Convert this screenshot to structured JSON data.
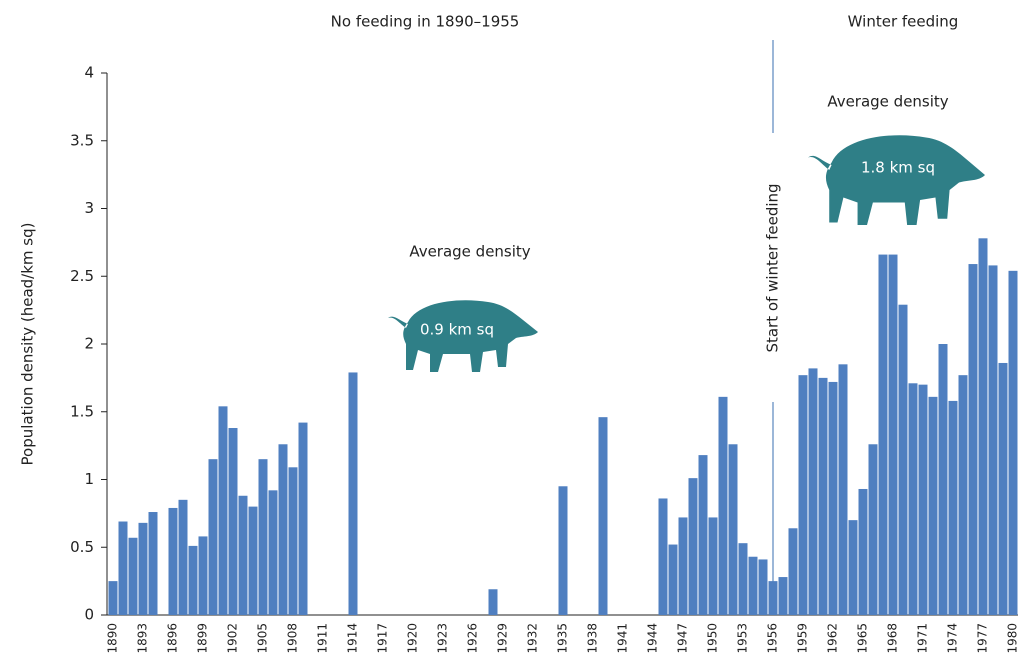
{
  "chart_data": {
    "type": "bar",
    "ylabel": "Population density (head/km sq)",
    "annotations": {
      "left_period": "No feeding in 1890–1955",
      "right_period": "Winter feeding",
      "left_avg": "Average density",
      "right_avg": "Average density",
      "left_value": "0.9 km sq",
      "right_value": "1.8 km sq",
      "marker": "Start of winter feeding"
    },
    "categories": [
      "1890",
      null,
      null,
      "1893",
      null,
      null,
      "1896",
      null,
      null,
      "1899",
      null,
      null,
      "1902",
      null,
      null,
      "1905",
      null,
      null,
      "1908",
      null,
      null,
      "1911",
      null,
      null,
      "1914",
      null,
      null,
      "1917",
      null,
      null,
      "1920",
      null,
      null,
      "1923",
      null,
      null,
      "1926",
      null,
      null,
      "1929",
      null,
      null,
      "1932",
      null,
      null,
      "1935",
      null,
      null,
      "1938",
      null,
      null,
      "1941",
      null,
      null,
      "1944",
      null,
      null,
      "1947",
      null,
      null,
      "1950",
      null,
      null,
      "1953",
      null,
      null,
      "1956",
      null,
      null,
      "1959",
      null,
      null,
      "1962",
      null,
      null,
      "1965",
      null,
      null,
      "1968",
      null,
      null,
      "1971",
      null,
      null,
      "1974",
      null,
      null,
      "1977",
      null,
      null,
      "1980"
    ],
    "values": [
      0.25,
      0.69,
      0.57,
      0.68,
      0.76,
      null,
      0.79,
      0.85,
      0.51,
      0.58,
      1.15,
      1.54,
      1.38,
      0.88,
      0.8,
      1.15,
      0.92,
      1.26,
      1.09,
      1.42,
      null,
      null,
      null,
      null,
      1.79,
      null,
      null,
      null,
      null,
      null,
      null,
      null,
      null,
      null,
      null,
      null,
      null,
      null,
      0.19,
      null,
      null,
      null,
      null,
      null,
      null,
      0.95,
      null,
      null,
      null,
      1.46,
      null,
      null,
      null,
      null,
      null,
      0.86,
      0.52,
      0.72,
      1.01,
      1.18,
      0.72,
      1.61,
      1.26,
      0.53,
      0.43,
      0.41,
      0.25,
      0.28,
      0.64,
      1.77,
      1.82,
      1.75,
      1.72,
      1.85,
      0.7,
      0.93,
      1.26,
      2.66,
      2.66,
      2.29,
      1.71,
      1.7,
      1.61,
      2.0,
      1.58,
      1.77,
      2.59,
      2.78,
      2.58,
      1.86,
      2.54
    ],
    "color": "#4f7fc0",
    "ylim": [
      0,
      4
    ],
    "yticks": [
      0,
      0.5,
      1,
      1.5,
      2,
      2.5,
      3,
      3.5,
      4
    ],
    "grid": false
  }
}
